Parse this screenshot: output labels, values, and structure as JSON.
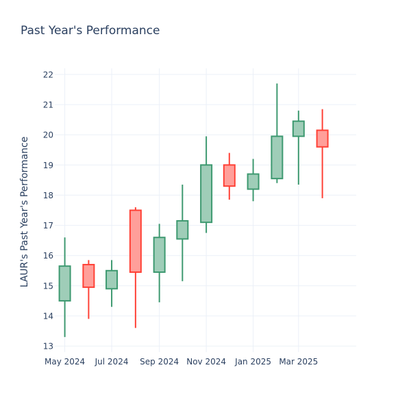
{
  "chart_data": {
    "type": "candlestick",
    "title": "Past Year's Performance",
    "xlabel": "",
    "ylabel": "LAUR's Past Year's Performance",
    "ylim": [
      12.8,
      22.2
    ],
    "y_ticks": [
      13,
      14,
      15,
      16,
      17,
      18,
      19,
      20,
      21,
      22
    ],
    "x_ticks": [
      {
        "label": "May 2024",
        "date": "2024-05-01"
      },
      {
        "label": "Jul 2024",
        "date": "2024-07-01"
      },
      {
        "label": "Sep 2024",
        "date": "2024-09-01"
      },
      {
        "label": "Nov 2024",
        "date": "2024-11-01"
      },
      {
        "label": "Jan 2025",
        "date": "2025-01-01"
      },
      {
        "label": "Mar 2025",
        "date": "2025-03-01"
      }
    ],
    "xlim": [
      "2024-04-18",
      "2025-05-15"
    ],
    "grid": true,
    "colors": {
      "increasing_line": "#3d9970",
      "increasing_fill": "#9fcdb8",
      "decreasing_line": "#ff4136",
      "decreasing_fill": "#ff9f9a",
      "grid": "#ebf0f8",
      "text": "#2a3f5f"
    },
    "candles": [
      {
        "date": "2024-05-01",
        "open": 14.5,
        "high": 16.6,
        "low": 13.3,
        "close": 15.65
      },
      {
        "date": "2024-06-01",
        "open": 15.7,
        "high": 15.85,
        "low": 13.9,
        "close": 14.95
      },
      {
        "date": "2024-07-01",
        "open": 14.9,
        "high": 15.85,
        "low": 14.3,
        "close": 15.5
      },
      {
        "date": "2024-08-01",
        "open": 17.5,
        "high": 17.6,
        "low": 13.6,
        "close": 15.45
      },
      {
        "date": "2024-09-01",
        "open": 15.45,
        "high": 17.05,
        "low": 14.45,
        "close": 16.6
      },
      {
        "date": "2024-10-01",
        "open": 16.55,
        "high": 18.35,
        "low": 15.15,
        "close": 17.15
      },
      {
        "date": "2024-11-01",
        "open": 17.1,
        "high": 19.95,
        "low": 16.75,
        "close": 19.0
      },
      {
        "date": "2024-12-01",
        "open": 19.0,
        "high": 19.4,
        "low": 17.85,
        "close": 18.3
      },
      {
        "date": "2025-01-01",
        "open": 18.2,
        "high": 19.2,
        "low": 17.8,
        "close": 18.7
      },
      {
        "date": "2025-02-01",
        "open": 18.55,
        "high": 21.7,
        "low": 18.4,
        "close": 19.95
      },
      {
        "date": "2025-03-01",
        "open": 19.95,
        "high": 20.8,
        "low": 18.35,
        "close": 20.45
      },
      {
        "date": "2025-04-01",
        "open": 20.15,
        "high": 20.85,
        "low": 17.9,
        "close": 19.6
      }
    ]
  }
}
